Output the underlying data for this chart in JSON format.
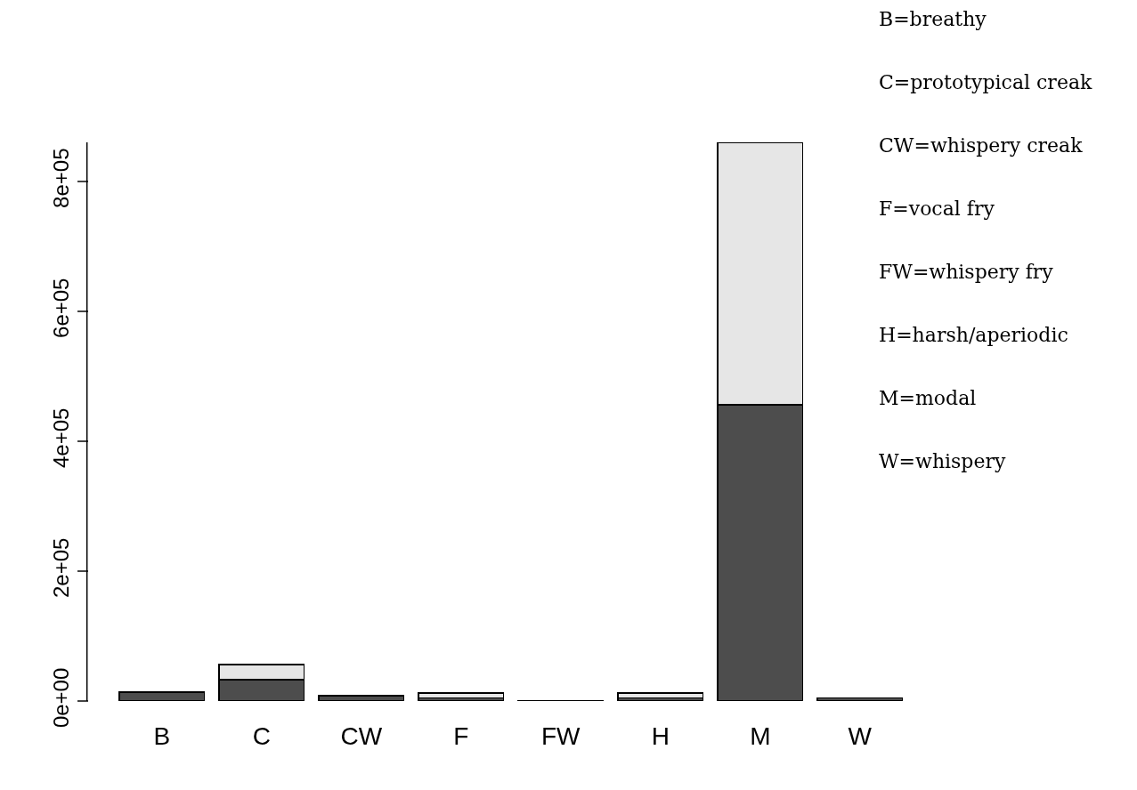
{
  "chart_data": {
    "type": "bar",
    "stacked": true,
    "categories": [
      "B",
      "C",
      "CW",
      "F",
      "FW",
      "H",
      "M",
      "W"
    ],
    "series": [
      {
        "color": "#4d4d4d",
        "values": [
          13000,
          33000,
          8000,
          5000,
          1000,
          5000,
          456000,
          5000
        ]
      },
      {
        "color": "#e6e6e6",
        "values": [
          1000,
          23000,
          1000,
          7000,
          null,
          7000,
          404000,
          null
        ]
      }
    ],
    "ylim": [
      0,
      860000
    ],
    "yticks": [
      {
        "value": 0,
        "label": "0e+00"
      },
      {
        "value": 200000,
        "label": "2e+05"
      },
      {
        "value": 400000,
        "label": "4e+05"
      },
      {
        "value": 600000,
        "label": "6e+05"
      },
      {
        "value": 800000,
        "label": "8e+05"
      }
    ],
    "annotations": [
      "B=breathy",
      "C=prototypical creak",
      "CW=whispery creak",
      "F=vocal fry",
      "FW=whispery fry",
      "H=harsh/aperiodic",
      "M=modal",
      "W=whispery"
    ]
  }
}
